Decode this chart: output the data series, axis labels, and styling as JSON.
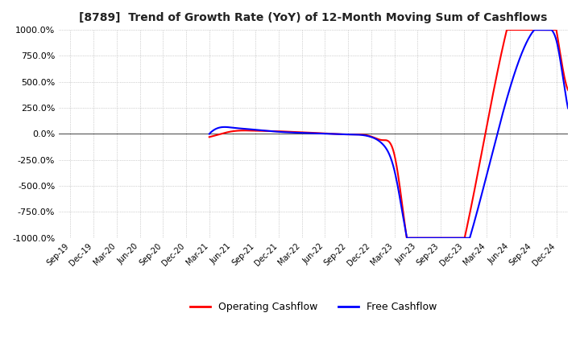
{
  "title": "[8789]  Trend of Growth Rate (YoY) of 12-Month Moving Sum of Cashflows",
  "ylim": [
    -1000,
    1000
  ],
  "yticks": [
    -1000,
    -750,
    -500,
    -250,
    0,
    250,
    500,
    750,
    1000
  ],
  "ytick_labels": [
    "-1000.0%",
    "-750.0%",
    "-500.0%",
    "-250.0%",
    "0.0%",
    "250.0%",
    "500.0%",
    "750.0%",
    "1000.0%"
  ],
  "background_color": "#ffffff",
  "grid_color": "#aaaaaa",
  "operating_color": "#ff0000",
  "free_color": "#0000ff",
  "x_labels": [
    "Sep-19",
    "Dec-19",
    "Mar-20",
    "Jun-20",
    "Sep-20",
    "Dec-20",
    "Mar-21",
    "Jun-21",
    "Sep-21",
    "Dec-21",
    "Mar-22",
    "Jun-22",
    "Sep-22",
    "Dec-22",
    "Mar-23",
    "Jun-23",
    "Sep-23",
    "Dec-23",
    "Mar-24",
    "Jun-24",
    "Sep-24",
    "Dec-24"
  ],
  "operating_x": [
    6,
    6.5,
    7,
    8,
    9,
    10,
    11,
    12,
    13,
    13.5,
    14,
    14.5,
    21,
    21.3,
    21.6
  ],
  "operating_y": [
    -30,
    0,
    25,
    30,
    25,
    15,
    5,
    -5,
    -25,
    -60,
    -200,
    -950,
    1000,
    600,
    400
  ],
  "free_x": [
    6,
    6.3,
    7,
    8,
    9,
    10,
    11,
    12,
    13,
    13.5,
    14,
    14.5,
    20.8,
    21.0,
    21.5,
    21.9
  ],
  "free_y": [
    0,
    50,
    60,
    40,
    20,
    10,
    2,
    -5,
    -30,
    -100,
    -350,
    -950,
    1000,
    900,
    250,
    200
  ]
}
